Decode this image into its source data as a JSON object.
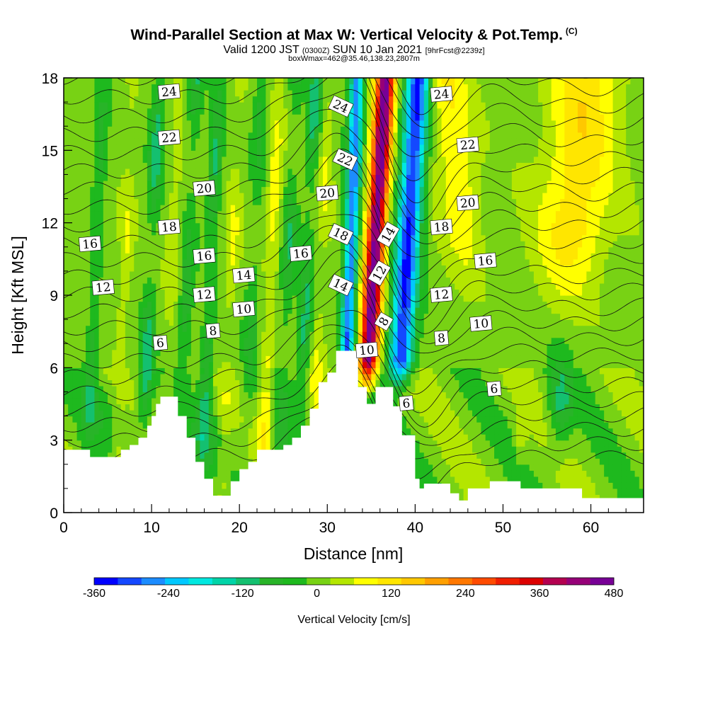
{
  "titles": {
    "main": "Wind-Parallel Section at Max W: Vertical Velocity & Pot.Temp.",
    "copyright": "(C)",
    "valid_prefix": "Valid 1200 JST",
    "valid_utc": "(0300Z)",
    "valid_date": "SUN 10 Jan 2021",
    "forecast": "[9hrFcst@2239z]",
    "box_info": "boxWmax=462@35.46,138.23,2807m"
  },
  "chart_data": {
    "type": "heatmap",
    "title": "Wind-Parallel Section at Max W: Vertical Velocity & Pot.Temp.",
    "xlabel": "Distance [nm]",
    "ylabel": "Height [Kft MSL]",
    "xlim": [
      0,
      66
    ],
    "ylim": [
      0,
      18
    ],
    "xticks": [
      0,
      10,
      20,
      30,
      40,
      50,
      60
    ],
    "yticks": [
      0,
      3,
      6,
      9,
      12,
      15,
      18
    ],
    "colorbar": {
      "label": "Vertical Velocity [cm/s]",
      "tick_labels": [
        "-360",
        "-240",
        "-120",
        "0",
        "120",
        "240",
        "360",
        "480"
      ],
      "tick_values": [
        -360,
        -240,
        -120,
        0,
        120,
        240,
        360,
        480
      ],
      "min": -360,
      "max": 480,
      "colors": [
        "#0000ff",
        "#1448ff",
        "#1c8cff",
        "#00c8ff",
        "#00e8e0",
        "#00d4a8",
        "#14c070",
        "#28b428",
        "#1eb91e",
        "#78d214",
        "#b4e600",
        "#ffff00",
        "#ffe600",
        "#ffc800",
        "#ffa000",
        "#ff7800",
        "#ff4b00",
        "#f01e00",
        "#dc0000",
        "#b40050",
        "#960078",
        "#780096"
      ]
    },
    "terrain_profile": [
      [
        0,
        2.6
      ],
      [
        3,
        2.6
      ],
      [
        3,
        2.3
      ],
      [
        6.5,
        2.3
      ],
      [
        6.5,
        2.6
      ],
      [
        7.5,
        2.6
      ],
      [
        7.5,
        2.8
      ],
      [
        8.5,
        2.8
      ],
      [
        8.5,
        3.1
      ],
      [
        9.5,
        3.1
      ],
      [
        9.5,
        3.6
      ],
      [
        10,
        3.6
      ],
      [
        10,
        4.0
      ],
      [
        10.5,
        4.0
      ],
      [
        10.5,
        4.5
      ],
      [
        11,
        4.5
      ],
      [
        11,
        4.8
      ],
      [
        13,
        4.8
      ],
      [
        13,
        4.0
      ],
      [
        14,
        4.0
      ],
      [
        14,
        3.1
      ],
      [
        15,
        3.1
      ],
      [
        15,
        2.1
      ],
      [
        16,
        2.1
      ],
      [
        16,
        1.4
      ],
      [
        17,
        1.4
      ],
      [
        17,
        0.7
      ],
      [
        19,
        0.7
      ],
      [
        19,
        1.3
      ],
      [
        20,
        1.3
      ],
      [
        20,
        1.8
      ],
      [
        21,
        1.8
      ],
      [
        21,
        2.1
      ],
      [
        22,
        2.1
      ],
      [
        22,
        2.6
      ],
      [
        25,
        2.6
      ],
      [
        25,
        2.8
      ],
      [
        26,
        2.8
      ],
      [
        26,
        3.1
      ],
      [
        27,
        3.1
      ],
      [
        27,
        3.6
      ],
      [
        28,
        3.6
      ],
      [
        28,
        4.3
      ],
      [
        29,
        4.3
      ],
      [
        29,
        5.4
      ],
      [
        30,
        5.4
      ],
      [
        30,
        5.8
      ],
      [
        31,
        5.8
      ],
      [
        31,
        6.7
      ],
      [
        33.5,
        6.7
      ],
      [
        33.5,
        5.2
      ],
      [
        34.5,
        5.2
      ],
      [
        34.5,
        4.5
      ],
      [
        35.5,
        4.5
      ],
      [
        35.5,
        5.2
      ],
      [
        37.5,
        5.2
      ],
      [
        37.5,
        4.4
      ],
      [
        38.5,
        4.4
      ],
      [
        38.5,
        3.2
      ],
      [
        40,
        3.2
      ],
      [
        40,
        1.4
      ],
      [
        40.5,
        1.4
      ],
      [
        40.5,
        1.0
      ],
      [
        41,
        1.0
      ],
      [
        41,
        1.2
      ],
      [
        44,
        1.2
      ],
      [
        44,
        0.8
      ],
      [
        45,
        0.8
      ],
      [
        45,
        0.5
      ],
      [
        46,
        0.5
      ],
      [
        46,
        1.0
      ],
      [
        48.5,
        1.0
      ],
      [
        48.5,
        1.3
      ],
      [
        52,
        1.3
      ],
      [
        52,
        1.0
      ],
      [
        59,
        1.0
      ],
      [
        59,
        0.6
      ],
      [
        66,
        0.6
      ],
      [
        66,
        0
      ],
      [
        0,
        0
      ]
    ],
    "vertical_velocity_features": [
      {
        "type": "updraft",
        "x_center": 35.5,
        "x_range": [
          34,
          37
        ],
        "z_range": [
          5,
          18
        ],
        "peak_value": 462
      },
      {
        "type": "downdraft",
        "x_center": 38.5,
        "x_range": [
          37,
          40.5
        ],
        "z_range": [
          6,
          18
        ],
        "min_value": -360
      },
      {
        "type": "downdraft",
        "x_center": 32.5,
        "x_range": [
          31,
          33.5
        ],
        "z_range": [
          6.7,
          18
        ],
        "min_value": -240
      },
      {
        "type": "updraft_weak",
        "x_center": 58,
        "x_range": [
          54,
          63
        ],
        "z_range": [
          8,
          18
        ],
        "peak_value": 100
      }
    ],
    "potential_temperature_contours": {
      "interval": 1,
      "labels": [
        {
          "value": 24,
          "x": 12,
          "z": 17.4
        },
        {
          "value": 22,
          "x": 12,
          "z": 15.5
        },
        {
          "value": 20,
          "x": 16,
          "z": 13.4
        },
        {
          "value": 18,
          "x": 12,
          "z": 11.8
        },
        {
          "value": 16,
          "x": 3,
          "z": 11.1
        },
        {
          "value": 12,
          "x": 4.5,
          "z": 9.3
        },
        {
          "value": 6,
          "x": 11,
          "z": 7.0
        },
        {
          "value": 16,
          "x": 16,
          "z": 10.6
        },
        {
          "value": 12,
          "x": 16,
          "z": 9.0
        },
        {
          "value": 8,
          "x": 17,
          "z": 7.5
        },
        {
          "value": 14,
          "x": 20.5,
          "z": 9.8
        },
        {
          "value": 10,
          "x": 20.5,
          "z": 8.4
        },
        {
          "value": 16,
          "x": 27,
          "z": 10.7
        },
        {
          "value": 20,
          "x": 30,
          "z": 13.2
        },
        {
          "value": 24,
          "x": 31.5,
          "z": 16.8
        },
        {
          "value": 22,
          "x": 32,
          "z": 14.6
        },
        {
          "value": 18,
          "x": 31.5,
          "z": 11.5
        },
        {
          "value": 14,
          "x": 31.5,
          "z": 9.4
        },
        {
          "value": 10,
          "x": 34.5,
          "z": 6.7
        },
        {
          "value": 12,
          "x": 36,
          "z": 9.9
        },
        {
          "value": 14,
          "x": 37,
          "z": 11.5
        },
        {
          "value": 8,
          "x": 36.5,
          "z": 7.9
        },
        {
          "value": 6,
          "x": 39,
          "z": 4.5
        },
        {
          "value": 24,
          "x": 43,
          "z": 17.3
        },
        {
          "value": 22,
          "x": 46,
          "z": 15.2
        },
        {
          "value": 20,
          "x": 46,
          "z": 12.8
        },
        {
          "value": 18,
          "x": 43,
          "z": 11.8
        },
        {
          "value": 16,
          "x": 48,
          "z": 10.4
        },
        {
          "value": 12,
          "x": 43,
          "z": 9.0
        },
        {
          "value": 10,
          "x": 47.5,
          "z": 7.8
        },
        {
          "value": 8,
          "x": 43,
          "z": 7.2
        },
        {
          "value": 6,
          "x": 49,
          "z": 5.1
        }
      ]
    }
  }
}
